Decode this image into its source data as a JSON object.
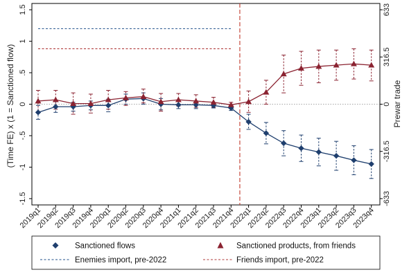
{
  "chart_data": {
    "type": "line",
    "ylabel_left": "(Time FE) x (1 = Sanctioned flow)",
    "ylabel_right": "Prewar trade",
    "ylim": [
      -1.6,
      1.6
    ],
    "left_ticks": [
      {
        "value": 1.5,
        "label": "1.5"
      },
      {
        "value": 1,
        "label": "1"
      },
      {
        "value": 0.5,
        "label": ".5"
      },
      {
        "value": 0,
        "label": "0"
      },
      {
        "value": -0.5,
        "label": "-.5"
      },
      {
        "value": -1,
        "label": "-1"
      },
      {
        "value": -1.5,
        "label": "-1.5"
      }
    ],
    "right_ticks": [
      {
        "value": 1.5,
        "label": "633"
      },
      {
        "value": 0.75,
        "label": "316.5"
      },
      {
        "value": 0,
        "label": "0"
      },
      {
        "value": -0.75,
        "label": "-316.5"
      },
      {
        "value": -1.5,
        "label": "-633"
      }
    ],
    "categories": [
      "2019q1",
      "2019q2",
      "2019q3",
      "2019q4",
      "2020q1",
      "2020q2",
      "2020q3",
      "2020q4",
      "2021q1",
      "2021q2",
      "2021q3",
      "2021q4",
      "2022q1",
      "2022q2",
      "2022q3",
      "2022q4",
      "2023q1",
      "2023q2",
      "2023q3",
      "2023q4"
    ],
    "event_line_category": "2021q4",
    "event_line_color": "#c0392b",
    "series": [
      {
        "name": "Sanctioned flows",
        "marker": "diamond",
        "color": "#1f3f6e",
        "values": [
          -0.13,
          -0.04,
          -0.04,
          -0.02,
          -0.02,
          0.08,
          0.09,
          0.0,
          -0.01,
          -0.01,
          -0.02,
          -0.06,
          -0.28,
          -0.46,
          -0.62,
          -0.7,
          -0.76,
          -0.82,
          -0.89,
          -0.95
        ],
        "lower": [
          -0.24,
          -0.13,
          -0.11,
          -0.09,
          -0.12,
          0.0,
          0.0,
          -0.09,
          -0.07,
          -0.07,
          -0.06,
          -0.1,
          -0.4,
          -0.63,
          -0.82,
          -0.91,
          -0.98,
          -1.05,
          -1.12,
          -1.18
        ],
        "upper": [
          -0.02,
          0.05,
          0.03,
          0.05,
          0.08,
          0.16,
          0.18,
          0.09,
          0.05,
          0.05,
          0.02,
          -0.02,
          -0.16,
          -0.29,
          -0.42,
          -0.49,
          -0.54,
          -0.59,
          -0.66,
          -0.72
        ]
      },
      {
        "name": "Sanctioned products, from friends",
        "marker": "triangle",
        "color": "#8b2331",
        "values": [
          0.05,
          0.07,
          0.01,
          0.01,
          0.07,
          0.1,
          0.12,
          0.04,
          0.07,
          0.05,
          0.03,
          -0.01,
          0.04,
          0.19,
          0.48,
          0.57,
          0.6,
          0.62,
          0.64,
          0.62
        ],
        "lower": [
          -0.12,
          -0.08,
          -0.16,
          -0.14,
          -0.08,
          -0.02,
          0.02,
          -0.11,
          -0.03,
          -0.05,
          -0.05,
          -0.05,
          -0.13,
          0.0,
          0.18,
          0.3,
          0.34,
          0.38,
          0.4,
          0.37
        ],
        "upper": [
          0.22,
          0.22,
          0.18,
          0.16,
          0.22,
          0.2,
          0.24,
          0.17,
          0.17,
          0.15,
          0.11,
          0.03,
          0.21,
          0.38,
          0.78,
          0.84,
          0.86,
          0.86,
          0.88,
          0.86
        ]
      }
    ],
    "reference_lines": [
      {
        "name": "Enemies import, pre-2022",
        "value": 1.2,
        "color": "#1f4f8a",
        "span": [
          "2019q1",
          "2021q4"
        ]
      },
      {
        "name": "Friends import, pre-2022",
        "value": 0.88,
        "color": "#b03a3a",
        "span": [
          "2019q1",
          "2021q4"
        ]
      }
    ],
    "zero_line": true,
    "grid": false,
    "legend_position": "bottom"
  }
}
